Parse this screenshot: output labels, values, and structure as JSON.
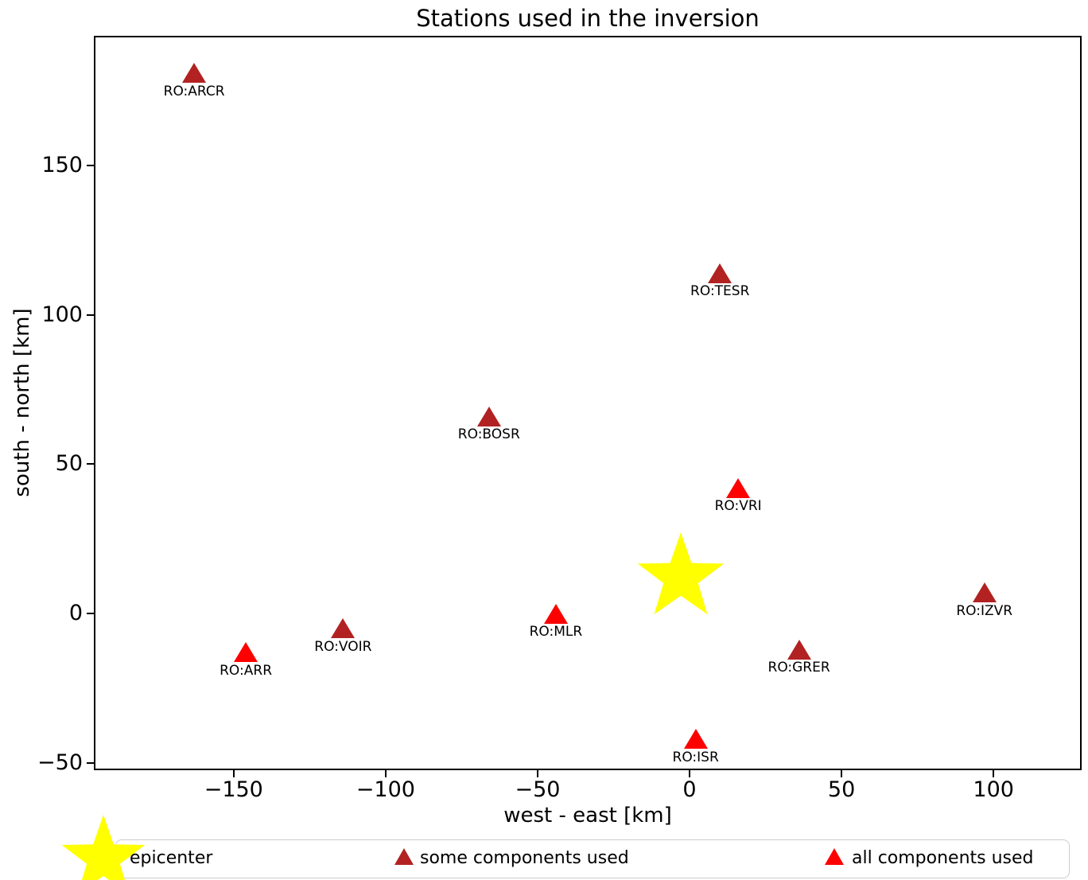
{
  "title": "Stations used in the inversion",
  "axes": {
    "xlabel": "west - east [km]",
    "ylabel": "south - north [km]"
  },
  "legend": {
    "entries": [
      {
        "label": "epicenter",
        "marker": "star",
        "color": "#ffff00"
      },
      {
        "label": "some components used",
        "marker": "triangle",
        "color": "#b22222"
      },
      {
        "label": "all components used",
        "marker": "triangle",
        "color": "#ff0000"
      }
    ]
  },
  "colors": {
    "epicenter": "#ffff00",
    "some_components": "#b22222",
    "all_components": "#ff0000",
    "axis": "#000000",
    "background": "#ffffff",
    "legend_border": "#cccccc"
  },
  "chart_data": {
    "type": "scatter",
    "title": "Stations used in the inversion",
    "xlabel": "west - east [km]",
    "ylabel": "south - north [km]",
    "xlim": [
      -196,
      129
    ],
    "ylim": [
      -52.5,
      193.5
    ],
    "xticks": [
      -150,
      -100,
      -50,
      0,
      50,
      100
    ],
    "yticks": [
      -50,
      0,
      50,
      100,
      150
    ],
    "grid": false,
    "legend_position": "bottom",
    "epicenter": {
      "x": -3,
      "y": 12
    },
    "stations": [
      {
        "name": "RO:ARCR",
        "x": -163,
        "y": 181,
        "components": "some"
      },
      {
        "name": "RO:TESR",
        "x": 10,
        "y": 114,
        "components": "some"
      },
      {
        "name": "RO:BOSR",
        "x": -66,
        "y": 66,
        "components": "some"
      },
      {
        "name": "RO:VRI",
        "x": 16,
        "y": 42,
        "components": "all"
      },
      {
        "name": "RO:IZVR",
        "x": 97,
        "y": 7,
        "components": "some"
      },
      {
        "name": "RO:MLR",
        "x": -44,
        "y": 0,
        "components": "all"
      },
      {
        "name": "RO:VOIR",
        "x": -114,
        "y": -5,
        "components": "some"
      },
      {
        "name": "RO:ARR",
        "x": -146,
        "y": -13,
        "components": "all"
      },
      {
        "name": "RO:GRER",
        "x": 36,
        "y": -12,
        "components": "some"
      },
      {
        "name": "RO:ISR",
        "x": 2,
        "y": -42,
        "components": "all"
      }
    ]
  }
}
